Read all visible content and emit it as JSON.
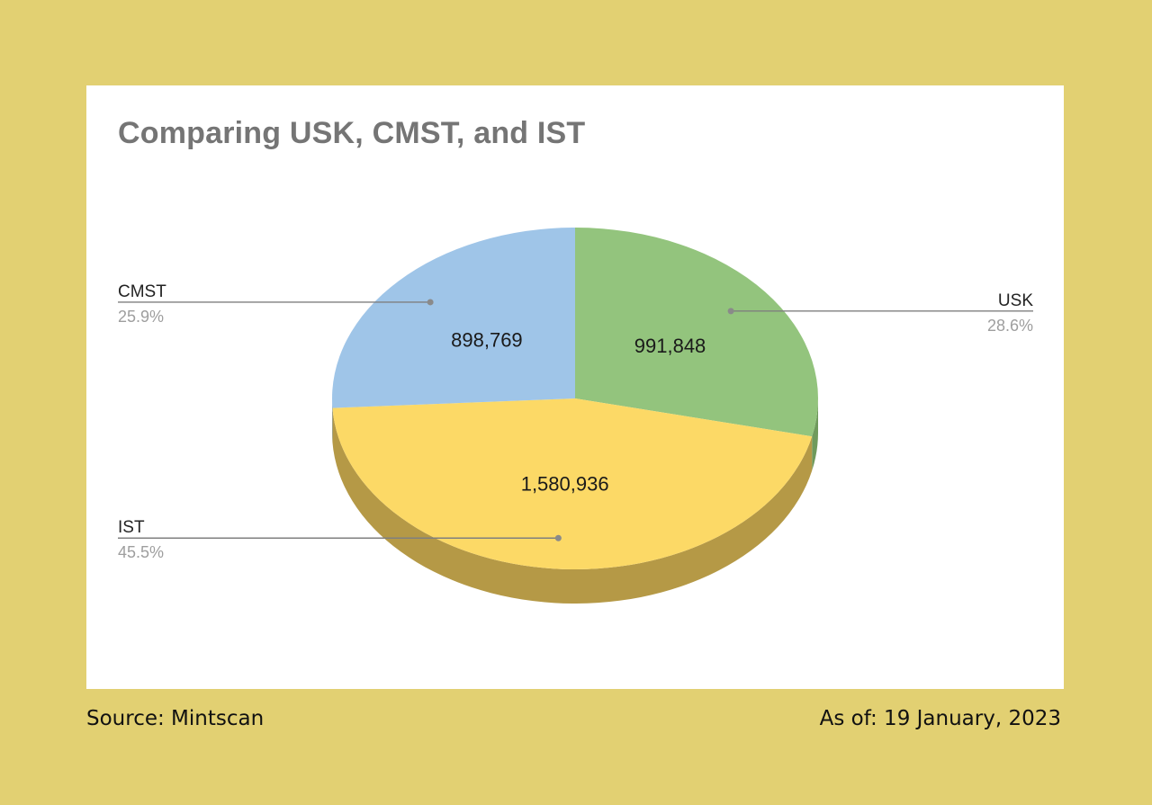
{
  "chart_data": {
    "type": "pie",
    "title": "Comparing USK, CMST, and IST",
    "slices": [
      {
        "name": "USK",
        "value": 991848,
        "value_label": "991,848",
        "percent_label": "28.6%",
        "color": "#93c47d",
        "side_color": "#6f9a5c"
      },
      {
        "name": "IST",
        "value": 1580936,
        "value_label": "1,580,936",
        "percent_label": "45.5%",
        "color": "#fcd966",
        "side_color": "#b59946"
      },
      {
        "name": "CMST",
        "value": 898769,
        "value_label": "898,769",
        "percent_label": "25.9%",
        "color": "#9fc5e8",
        "side_color": "#7699b7"
      }
    ],
    "legend_placement": "callouts"
  },
  "footer": {
    "source": "Source: Mintscan",
    "as_of": "As of: 19 January, 2023"
  }
}
